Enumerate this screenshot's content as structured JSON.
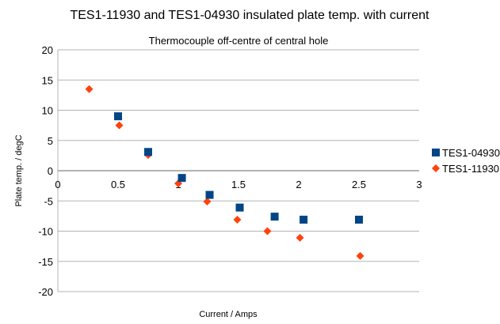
{
  "chart_data": {
    "type": "scatter",
    "title": "TES1-11930 and TES1-04930 insulated plate temp. with current",
    "subtitle": "Thermocouple off-centre of central hole",
    "xlabel": "Current / Amps",
    "ylabel": "Plate temp. / degC",
    "xlim": [
      0,
      3
    ],
    "ylim": [
      -20,
      20
    ],
    "xticks": [
      "0",
      "0.5",
      "1",
      "1.5",
      "2",
      "2.5",
      "3"
    ],
    "yticks": [
      "20",
      "15",
      "10",
      "5",
      "0",
      "-5",
      "-10",
      "-15",
      "-20"
    ],
    "grid": "horizontal",
    "legend_position": "right",
    "series": [
      {
        "name": "TES1-04930",
        "marker": "square",
        "color": "#004586",
        "x": [
          0.5,
          0.75,
          1.03,
          1.26,
          1.51,
          1.8,
          2.04,
          2.5
        ],
        "y": [
          9,
          3.1,
          -1.2,
          -4,
          -6.1,
          -7.6,
          -8.1,
          -8.1
        ]
      },
      {
        "name": "TES1-11930",
        "marker": "diamond",
        "color": "#ff420e",
        "x": [
          0.26,
          0.51,
          0.75,
          1.0,
          1.24,
          1.49,
          1.74,
          2.01,
          2.51
        ],
        "y": [
          13.5,
          7.5,
          2.6,
          -2.1,
          -5.1,
          -8.1,
          -10,
          -11.1,
          -14.1
        ]
      }
    ]
  }
}
